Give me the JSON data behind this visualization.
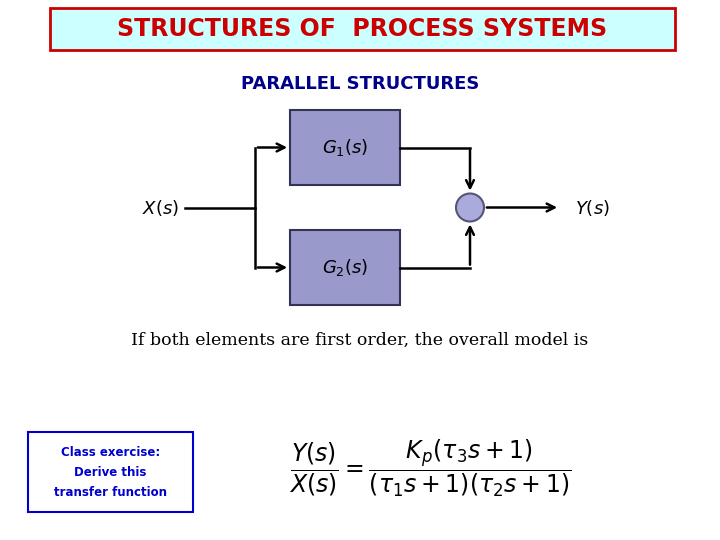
{
  "title": "STRUCTURES OF  PROCESS SYSTEMS",
  "title_color": "#cc0000",
  "title_bg": "#ccffff",
  "title_border": "#cc0000",
  "subtitle": "PARALLEL STRUCTURES",
  "subtitle_color": "#00008B",
  "block_color": "#9999cc",
  "block_border": "#333355",
  "g1_label": "$G_1(s)$",
  "g2_label": "$G_2(s)$",
  "x_label": "$X(s)$",
  "y_label": "$Y(s)$",
  "text_line": "If both elements are first order, the overall model is",
  "class_box_text": "Class exercise:\nDerive this\ntransfer function",
  "class_box_color": "#0000cc",
  "sum_circle_face": "#aaaadd",
  "sum_circle_edge": "#555577",
  "background": "#ffffff"
}
